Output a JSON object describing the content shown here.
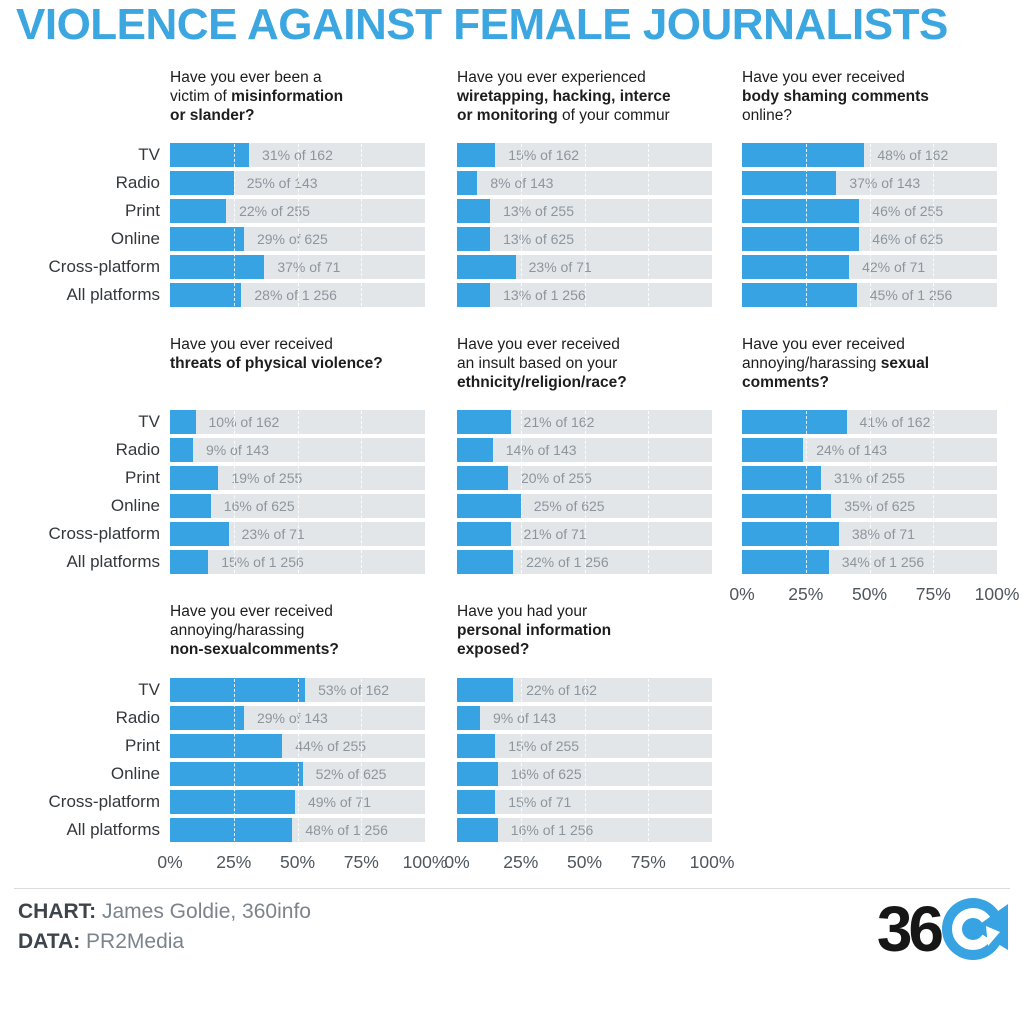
{
  "title": "VIOLENCE AGAINST FEMALE JOURNALISTS",
  "colors": {
    "accent": "#38a3e3",
    "track": "#e3e6e9",
    "title_blue": "#3ba6e0",
    "bar_label": "#8d959c",
    "axis_label": "#4e565e",
    "category_label": "#34383c",
    "footer_label": "#3d444b",
    "footer_value": "#7b848c",
    "logo_black": "#161616"
  },
  "footer": {
    "chart_label": "CHART:",
    "chart_value": "James Goldie, 360info",
    "data_label": "DATA:",
    "data_value": "PR2Media",
    "logo_text": "36"
  },
  "chart_data": {
    "type": "bar",
    "orientation": "horizontal",
    "title": "VIOLENCE AGAINST FEMALE JOURNALISTS",
    "categories": [
      "TV",
      "Radio",
      "Print",
      "Online",
      "Cross-platform",
      "All platforms"
    ],
    "sample_sizes": [
      162,
      143,
      255,
      625,
      71,
      1256
    ],
    "sample_sizes_display": [
      "162",
      "143",
      "255",
      "625",
      "71",
      "1 256"
    ],
    "xlim": [
      0,
      100
    ],
    "x_ticks": [
      "0%",
      "25%",
      "50%",
      "75%",
      "100%"
    ],
    "x_tick_values": [
      0,
      25,
      50,
      75,
      100
    ],
    "grid": true,
    "value_label_format": "{value}% of {n}",
    "facets": [
      {
        "question_lines": [
          [
            [
              "Have you ever been a",
              false
            ]
          ],
          [
            [
              "victim of ",
              false
            ],
            [
              "misinformation",
              true
            ]
          ],
          [
            [
              "or slander?",
              true
            ]
          ]
        ],
        "values": [
          31,
          25,
          22,
          29,
          37,
          28
        ],
        "show_axis": false,
        "show_category_labels": true
      },
      {
        "question_lines": [
          [
            [
              "Have you ever experienced",
              false
            ]
          ],
          [
            [
              "wiretapping, hacking, interce",
              true
            ]
          ],
          [
            [
              "or monitoring",
              true
            ],
            [
              " of your commur",
              false
            ]
          ]
        ],
        "values": [
          15,
          8,
          13,
          13,
          23,
          13
        ],
        "show_axis": false,
        "show_category_labels": false
      },
      {
        "question_lines": [
          [
            [
              "Have you ever received",
              false
            ]
          ],
          [
            [
              "body shaming comments",
              true
            ]
          ],
          [
            [
              "online?",
              false
            ]
          ]
        ],
        "values": [
          48,
          37,
          46,
          46,
          42,
          45
        ],
        "show_axis": false,
        "show_category_labels": false
      },
      {
        "question_lines": [
          [
            [
              "Have you ever received",
              false
            ]
          ],
          [
            [
              "threats of physical violence?",
              true
            ]
          ]
        ],
        "values": [
          10,
          9,
          19,
          16,
          23,
          15
        ],
        "show_axis": false,
        "show_category_labels": true
      },
      {
        "question_lines": [
          [
            [
              "Have you ever received",
              false
            ]
          ],
          [
            [
              "an insult based on your",
              false
            ]
          ],
          [
            [
              "ethnicity/religion/race?",
              true
            ]
          ]
        ],
        "values": [
          21,
          14,
          20,
          25,
          21,
          22
        ],
        "show_axis": false,
        "show_category_labels": false
      },
      {
        "question_lines": [
          [
            [
              "Have you ever received",
              false
            ]
          ],
          [
            [
              "annoying/harassing ",
              false
            ],
            [
              "sexual",
              true
            ]
          ],
          [
            [
              "comments?",
              true
            ]
          ]
        ],
        "values": [
          41,
          24,
          31,
          35,
          38,
          34
        ],
        "show_axis": true,
        "show_category_labels": false
      },
      {
        "question_lines": [
          [
            [
              "Have you ever received",
              false
            ]
          ],
          [
            [
              "annoying/harassing",
              false
            ]
          ],
          [
            [
              "non-sexualcomments?",
              true
            ]
          ]
        ],
        "values": [
          53,
          29,
          44,
          52,
          49,
          48
        ],
        "show_axis": true,
        "show_category_labels": true
      },
      {
        "question_lines": [
          [
            [
              "Have you had your",
              false
            ]
          ],
          [
            [
              "personal information",
              true
            ]
          ],
          [
            [
              "exposed?",
              true
            ]
          ]
        ],
        "values": [
          22,
          9,
          15,
          16,
          15,
          16
        ],
        "show_axis": true,
        "show_category_labels": false
      }
    ]
  }
}
